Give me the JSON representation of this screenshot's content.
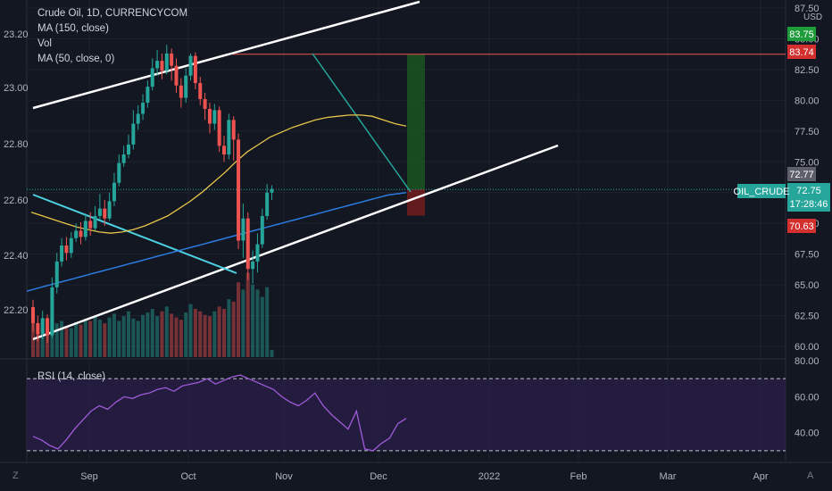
{
  "legend": {
    "symbol": "Crude Oil, 1D, CURRENCYCOM",
    "ma150": "MA (150, close)",
    "vol": "Vol",
    "ma50": "MA (50, close, 0)"
  },
  "rsi_label": "RSI (14, close)",
  "currency": "USD",
  "colors": {
    "up": "#26a69a",
    "down": "#ef5350",
    "ma50": "#e8c547",
    "ma150": "#2c7be0",
    "rsi": "#a05ad9",
    "bg": "#131722"
  },
  "corner_left": "Z",
  "corner_right": "A",
  "badges": {
    "b1": "83.75",
    "b2": "83.74",
    "b3": "72.77",
    "b4": "72.75",
    "b5": "17:28:46",
    "b6": "70.63",
    "symbol_tag": "OIL_CRUDE"
  },
  "chart_data": {
    "type": "candlestick",
    "left_axis": {
      "ticks": [
        "23.20",
        "23.00",
        "22.80",
        "22.60",
        "22.40",
        "22.20"
      ]
    },
    "right_axis": {
      "ticks": [
        "87.50",
        "85.00",
        "82.50",
        "80.00",
        "77.50",
        "75.00",
        "72.50",
        "70.00",
        "67.50",
        "65.00",
        "62.50",
        "60.00"
      ],
      "range": [
        59.5,
        88
      ]
    },
    "rsi_axis": {
      "ticks": [
        "80.00",
        "60.00",
        "40.00"
      ],
      "range": [
        25,
        80
      ],
      "bands": [
        30,
        70
      ]
    },
    "x_ticks": [
      "Sep",
      "Oct",
      "Nov",
      "Dec",
      "2022",
      "Feb",
      "Mar",
      "Apr"
    ],
    "series": [
      {
        "name": "MA (150, close)",
        "values": [
          64.5,
          64.7,
          64.9,
          65.1,
          65.3,
          65.5,
          65.7,
          65.9,
          66.1,
          66.3,
          66.5,
          66.7,
          66.9,
          67.1,
          67.3,
          67.5,
          67.7,
          67.9,
          68.1,
          68.3,
          68.5,
          68.7,
          68.9,
          69.1,
          69.3,
          69.5,
          69.7,
          69.9,
          70.1,
          70.3,
          70.5,
          70.7,
          70.9,
          71.1,
          71.3,
          71.5,
          71.7,
          71.9,
          72.1,
          72.3,
          72.4,
          72.5
        ]
      },
      {
        "name": "MA (50, close, 0)",
        "values": [
          70.9,
          70.6,
          70.3,
          70.0,
          69.7,
          69.5,
          69.3,
          69.2,
          69.3,
          69.5,
          69.8,
          70.2,
          70.6,
          71.2,
          71.8,
          72.5,
          73.3,
          74.1,
          75.0,
          75.8,
          76.4,
          77.0,
          77.4,
          77.8,
          78.1,
          78.4,
          78.6,
          78.7,
          78.8,
          78.8,
          78.7,
          78.4,
          78.1,
          77.9
        ]
      },
      {
        "name": "RSI (14, close)",
        "values": [
          38,
          36,
          33,
          31,
          36,
          42,
          47,
          52,
          55,
          53,
          57,
          60,
          59,
          61,
          62,
          64,
          65,
          63,
          66,
          67,
          68,
          70,
          67,
          69,
          71,
          72,
          70,
          68,
          66,
          64,
          60,
          57,
          55,
          58,
          62,
          55,
          50,
          46,
          42,
          52,
          31,
          30,
          34,
          37,
          45,
          48
        ]
      }
    ],
    "annotations": [
      "upper channel line",
      "lower channel line",
      "descending trendlines",
      "long position box",
      "target level"
    ]
  }
}
